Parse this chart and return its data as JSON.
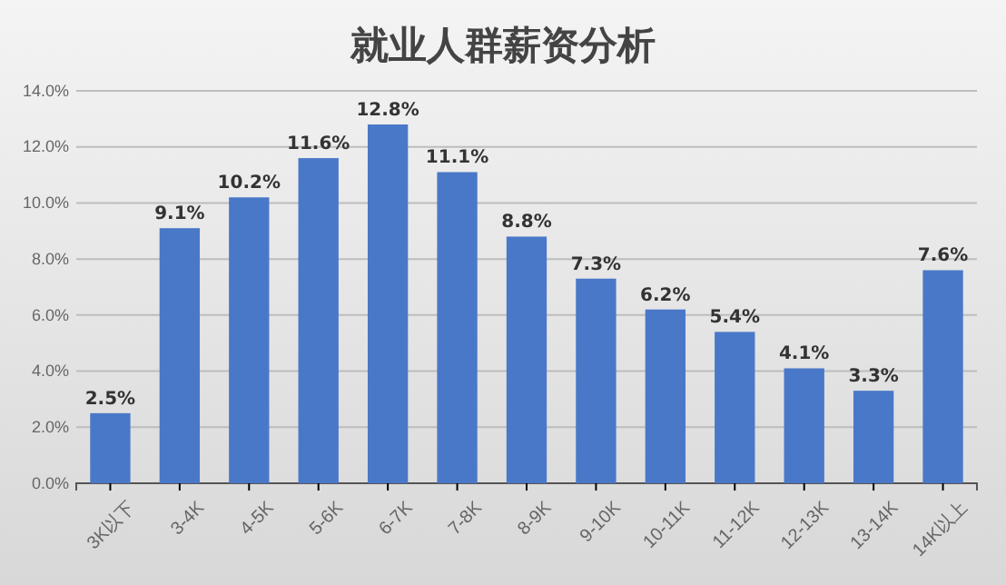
{
  "chart_data": {
    "type": "bar",
    "title": "就业人群薪资分析",
    "categories": [
      "3K以下",
      "3-4K",
      "4-5K",
      "5-6K",
      "6-7K",
      "7-8K",
      "8-9K",
      "9-10K",
      "10-11K",
      "11-12K",
      "12-13K",
      "13-14K",
      "14K以上"
    ],
    "values": [
      2.5,
      9.1,
      10.2,
      11.6,
      12.8,
      11.1,
      8.8,
      7.3,
      6.2,
      5.4,
      4.1,
      3.3,
      7.6
    ],
    "value_labels": [
      "2.5%",
      "9.1%",
      "10.2%",
      "11.6%",
      "12.8%",
      "11.1%",
      "8.8%",
      "7.3%",
      "6.2%",
      "5.4%",
      "4.1%",
      "3.3%",
      "7.6%"
    ],
    "color": "#4a78c8",
    "ylim": [
      0,
      14
    ],
    "yticks": [
      {
        "value": 0,
        "label": "0.0%"
      },
      {
        "value": 2,
        "label": "2.0%"
      },
      {
        "value": 4,
        "label": "4.0%"
      },
      {
        "value": 6,
        "label": "6.0%"
      },
      {
        "value": 8,
        "label": "8.0%"
      },
      {
        "value": 10,
        "label": "10.0%"
      },
      {
        "value": 12,
        "label": "12.0%"
      },
      {
        "value": 14,
        "label": "14.0%"
      }
    ],
    "grid": "y"
  }
}
